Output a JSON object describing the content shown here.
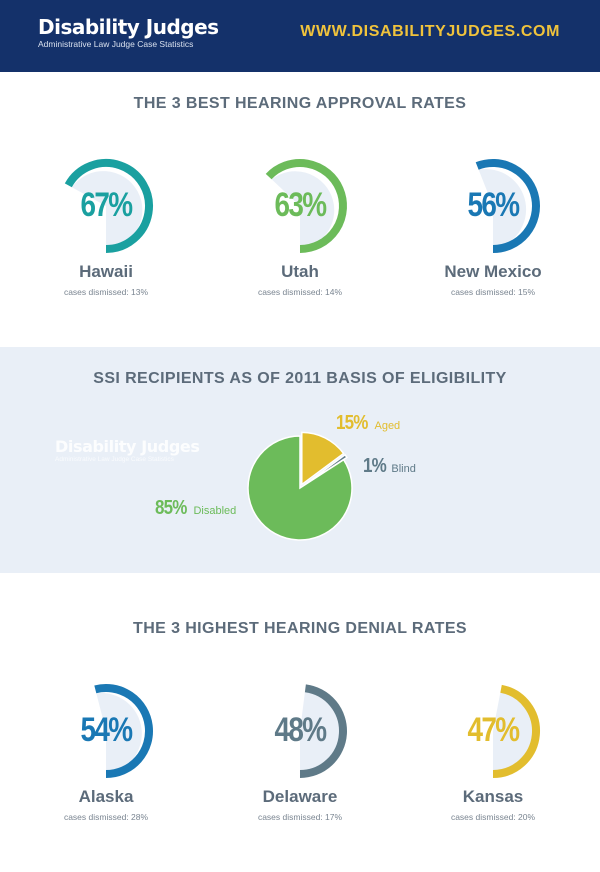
{
  "header": {
    "brand_name": "Disability Judges",
    "brand_tagline": "Administrative Law Judge Case Statistics",
    "site_url": "WWW.DISABILITYJUDGES.COM"
  },
  "colors": {
    "header_bg": "#14316a",
    "url": "#f0c33c",
    "teal": "#1aa0a0",
    "green": "#6cbb5a",
    "blue": "#1a78b4",
    "slate": "#5f7a88",
    "gold": "#e2bd2e",
    "band_bg": "#e9eff7"
  },
  "chart_data": [
    {
      "type": "gauge",
      "title": "THE 3 BEST HEARING APPROVAL RATES",
      "items": [
        {
          "state": "Hawaii",
          "value": 67,
          "value_label": "67%",
          "note": "cases dismissed: 13%",
          "color": "#1aa0a0"
        },
        {
          "state": "Utah",
          "value": 63,
          "value_label": "63%",
          "note": "cases dismissed: 14%",
          "color": "#6cbb5a"
        },
        {
          "state": "New Mexico",
          "value": 56,
          "value_label": "56%",
          "note": "cases dismissed: 15%",
          "color": "#1a78b4"
        }
      ]
    },
    {
      "type": "pie",
      "title": "SSI RECIPIENTS AS OF 2011 BASIS OF ELIGIBILITY",
      "slices": [
        {
          "name": "Aged",
          "value": 15,
          "value_label": "15%",
          "color": "#e2bd2e"
        },
        {
          "name": "Blind",
          "value": 1,
          "value_label": "1%",
          "color": "#5f7a88"
        },
        {
          "name": "Disabled",
          "value": 85,
          "value_label": "85%",
          "color": "#6cbb5a"
        }
      ]
    },
    {
      "type": "gauge",
      "title": "THE 3 HIGHEST HEARING DENIAL RATES",
      "items": [
        {
          "state": "Alaska",
          "value": 54,
          "value_label": "54%",
          "note": "cases dismissed: 28%",
          "color": "#1a78b4"
        },
        {
          "state": "Delaware",
          "value": 48,
          "value_label": "48%",
          "note": "cases dismissed: 17%",
          "color": "#5f7a88"
        },
        {
          "state": "Kansas",
          "value": 47,
          "value_label": "47%",
          "note": "cases dismissed: 20%",
          "color": "#e2bd2e"
        }
      ]
    }
  ]
}
